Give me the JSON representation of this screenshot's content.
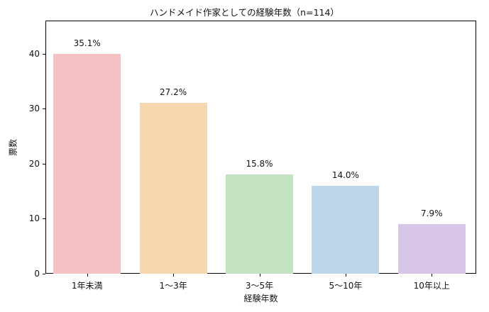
{
  "chart_data": {
    "type": "bar",
    "title": "ハンドメイド作家としての経験年数（n=114）",
    "xlabel": "経験年数",
    "ylabel": "票数",
    "categories": [
      "1年未満",
      "1〜3年",
      "3〜5年",
      "5〜10年",
      "10年以上"
    ],
    "values": [
      40,
      31,
      18,
      16,
      9
    ],
    "percent_labels": [
      "35.1%",
      "27.2%",
      "15.8%",
      "14.0%",
      "7.9%"
    ],
    "colors": [
      "#f4c2c2",
      "#f6d6ae",
      "#c3e2c2",
      "#bed6ea",
      "#d7c6e8"
    ],
    "ylim": [
      0,
      46
    ],
    "yticks": [
      0,
      10,
      20,
      30,
      40
    ],
    "grid": false,
    "legend": null
  }
}
